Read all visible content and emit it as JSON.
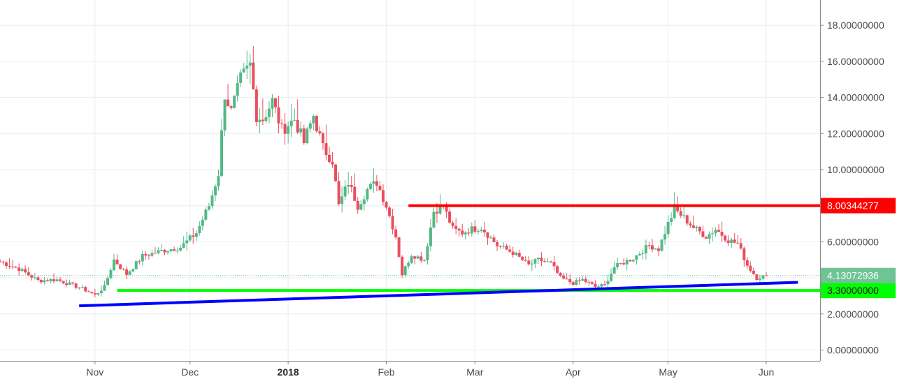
{
  "chart_data": {
    "type": "candlestick",
    "title": "",
    "xlabel": "",
    "ylabel": "",
    "ylim": [
      -0.6,
      19.4
    ],
    "grid": true,
    "y_ticks": [
      {
        "value": 18,
        "label": "18.00000000"
      },
      {
        "value": 16,
        "label": "16.00000000"
      },
      {
        "value": 14,
        "label": "14.00000000"
      },
      {
        "value": 12,
        "label": "12.00000000"
      },
      {
        "value": 10,
        "label": "10.00000000"
      },
      {
        "value": 6,
        "label": "6.00000000"
      },
      {
        "value": 2,
        "label": "2.00000000"
      },
      {
        "value": 0,
        "label": "0.00000000"
      }
    ],
    "x_ticks": [
      {
        "date": "2017-11-01",
        "label": "Nov",
        "bold": false
      },
      {
        "date": "2017-12-01",
        "label": "Dec",
        "bold": false
      },
      {
        "date": "2018-01-01",
        "label": "2018",
        "bold": true
      },
      {
        "date": "2018-02-01",
        "label": "Feb",
        "bold": false
      },
      {
        "date": "2018-03-01",
        "label": "Mar",
        "bold": false
      },
      {
        "date": "2018-04-01",
        "label": "Apr",
        "bold": false
      },
      {
        "date": "2018-05-01",
        "label": "May",
        "bold": false
      },
      {
        "date": "2018-06-01",
        "label": "Jun",
        "bold": false
      }
    ],
    "x_range": [
      "2017-10-02",
      "2018-06-18"
    ],
    "price_path": [
      [
        "2017-10-02",
        4.9
      ],
      [
        "2017-10-08",
        4.5
      ],
      [
        "2017-10-14",
        3.85
      ],
      [
        "2017-10-20",
        3.9
      ],
      [
        "2017-10-28",
        3.4
      ],
      [
        "2017-11-01",
        3.05
      ],
      [
        "2017-11-04",
        3.5
      ],
      [
        "2017-11-07",
        5.0
      ],
      [
        "2017-11-11",
        4.2
      ],
      [
        "2017-11-16",
        5.2
      ],
      [
        "2017-11-22",
        5.5
      ],
      [
        "2017-11-28",
        5.7
      ],
      [
        "2017-12-03",
        6.5
      ],
      [
        "2017-12-07",
        8.0
      ],
      [
        "2017-12-10",
        9.8
      ],
      [
        "2017-12-12",
        14.2
      ],
      [
        "2017-12-14",
        13.2
      ],
      [
        "2017-12-17",
        15.0
      ],
      [
        "2017-12-20",
        15.8
      ],
      [
        "2017-12-22",
        13.0
      ],
      [
        "2017-12-24",
        12.8
      ],
      [
        "2017-12-27",
        13.8
      ],
      [
        "2017-12-30",
        12.2
      ],
      [
        "2018-01-03",
        12.8
      ],
      [
        "2018-01-06",
        11.5
      ],
      [
        "2018-01-09",
        13.0
      ],
      [
        "2018-01-12",
        11.2
      ],
      [
        "2018-01-15",
        10.5
      ],
      [
        "2018-01-17",
        8.0
      ],
      [
        "2018-01-20",
        9.3
      ],
      [
        "2018-01-23",
        8.0
      ],
      [
        "2018-01-26",
        8.9
      ],
      [
        "2018-01-29",
        9.3
      ],
      [
        "2018-02-01",
        8.0
      ],
      [
        "2018-02-04",
        6.3
      ],
      [
        "2018-02-06",
        4.2
      ],
      [
        "2018-02-09",
        5.3
      ],
      [
        "2018-02-13",
        5.0
      ],
      [
        "2018-02-16",
        7.7
      ],
      [
        "2018-02-19",
        8.0
      ],
      [
        "2018-02-22",
        6.7
      ],
      [
        "2018-02-25",
        6.5
      ],
      [
        "2018-02-28",
        6.7
      ],
      [
        "2018-03-03",
        6.8
      ],
      [
        "2018-03-08",
        5.8
      ],
      [
        "2018-03-13",
        5.4
      ],
      [
        "2018-03-18",
        4.7
      ],
      [
        "2018-03-21",
        5.0
      ],
      [
        "2018-03-25",
        4.8
      ],
      [
        "2018-03-28",
        4.0
      ],
      [
        "2018-04-01",
        3.7
      ],
      [
        "2018-04-04",
        3.9
      ],
      [
        "2018-04-08",
        3.5
      ],
      [
        "2018-04-11",
        3.6
      ],
      [
        "2018-04-14",
        4.6
      ],
      [
        "2018-04-20",
        5.1
      ],
      [
        "2018-04-25",
        5.8
      ],
      [
        "2018-04-28",
        5.6
      ],
      [
        "2018-05-01",
        7.0
      ],
      [
        "2018-05-03",
        7.8
      ],
      [
        "2018-05-05",
        7.5
      ],
      [
        "2018-05-09",
        6.8
      ],
      [
        "2018-05-13",
        6.3
      ],
      [
        "2018-05-16",
        6.7
      ],
      [
        "2018-05-20",
        6.1
      ],
      [
        "2018-05-23",
        5.9
      ],
      [
        "2018-05-26",
        4.7
      ],
      [
        "2018-05-29",
        4.0
      ],
      [
        "2018-06-01",
        4.13
      ]
    ],
    "last_price": {
      "value": 4.13072936,
      "label": "4.13072936",
      "color": "#6fc496"
    },
    "annotations": [
      {
        "kind": "resistance",
        "value": 8.00344277,
        "label": "8.00344277",
        "color": "#ff0000",
        "from": "2018-02-08",
        "to": "2018-06-18"
      },
      {
        "kind": "support",
        "value": 3.3,
        "label": "3.30000000",
        "color": "#00ff00",
        "from": "2017-11-08",
        "to": "2018-06-18"
      },
      {
        "kind": "trendline",
        "color": "#0000ff",
        "from": [
          "2017-10-27",
          2.45
        ],
        "to": [
          "2018-06-11",
          3.75
        ]
      }
    ],
    "colors": {
      "up": "#53b987",
      "down": "#eb4d5c",
      "grid": "#e8eef3",
      "axis": "#8a8a8a"
    }
  }
}
